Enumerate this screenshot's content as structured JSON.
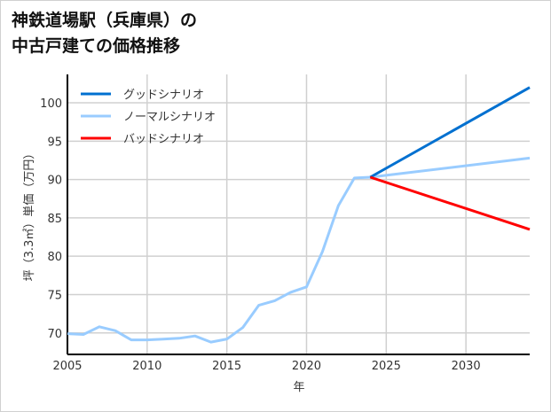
{
  "chart_data": {
    "type": "line",
    "title": [
      "神鉄道場駅（兵庫県）の",
      "中古戸建ての価格推移"
    ],
    "xlabel": "年",
    "ylabel": "坪（3.3㎡）単価（万円）",
    "xlim": [
      2005,
      2034
    ],
    "ylim": [
      67.2,
      103.7
    ],
    "xticks": [
      2005,
      2010,
      2015,
      2020,
      2025,
      2030
    ],
    "yticks": [
      70,
      75,
      80,
      85,
      90,
      95,
      100
    ],
    "grid": true,
    "legend_position": "top-left",
    "series": [
      {
        "name": "グッドシナリオ",
        "color": "#0070d0",
        "x": [
          2024,
          2034
        ],
        "y": [
          90.3,
          102.0
        ]
      },
      {
        "name": "ノーマルシナリオ",
        "color": "#99ccff",
        "x": [
          2005,
          2006,
          2007,
          2008,
          2009,
          2010,
          2011,
          2012,
          2013,
          2014,
          2015,
          2016,
          2017,
          2018,
          2019,
          2020,
          2021,
          2022,
          2023,
          2024,
          2034
        ],
        "y": [
          69.9,
          69.8,
          70.8,
          70.3,
          69.1,
          69.1,
          69.2,
          69.3,
          69.6,
          68.8,
          69.2,
          70.7,
          73.6,
          74.2,
          75.3,
          76.0,
          80.6,
          86.6,
          90.2,
          90.3,
          92.8
        ]
      },
      {
        "name": "バッドシナリオ",
        "color": "#ff0000",
        "x": [
          2024,
          2034
        ],
        "y": [
          90.3,
          83.5
        ]
      }
    ]
  }
}
